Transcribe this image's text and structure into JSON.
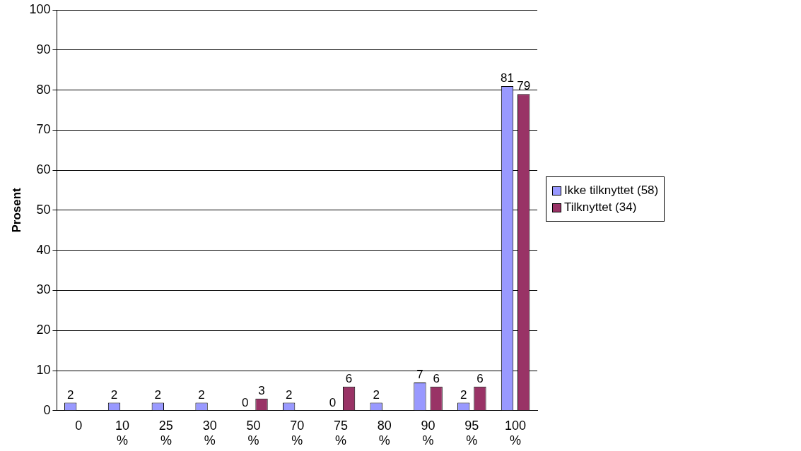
{
  "chart_data": {
    "type": "bar",
    "ylabel": "Prosent",
    "categories": [
      "0",
      "10 %",
      "25 %",
      "30 %",
      "50 %",
      "70 %",
      "75 %",
      "80 %",
      "90 %",
      "95 %",
      "100 %"
    ],
    "series": [
      {
        "name": "Ikke tilknyttet (58)",
        "color": "#9999ff",
        "values": [
          2,
          2,
          2,
          2,
          0,
          2,
          0,
          2,
          7,
          2,
          81
        ]
      },
      {
        "name": "Tilknyttet (34)",
        "color": "#993366",
        "values": [
          null,
          null,
          null,
          null,
          3,
          null,
          6,
          null,
          6,
          6,
          79
        ]
      }
    ],
    "ylim": [
      0,
      100
    ],
    "yticks": [
      0,
      10,
      20,
      30,
      40,
      50,
      60,
      70,
      80,
      90,
      100
    ],
    "grid": "y",
    "legend": "right",
    "data_labels": true
  }
}
